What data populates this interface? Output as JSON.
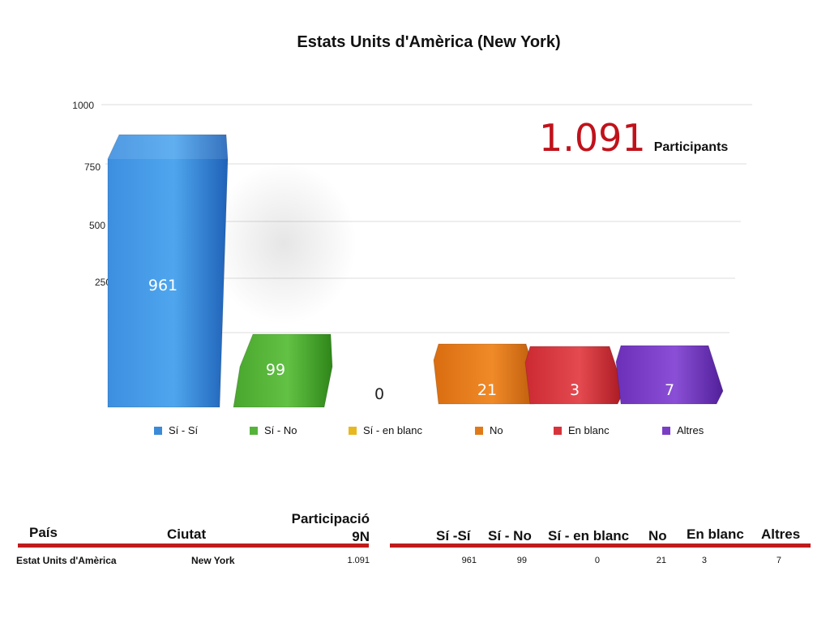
{
  "header": {
    "title": "Estats Units d'Amèrica (New York)",
    "participants_value": "1.091",
    "participants_label": "Participants"
  },
  "chart_data": {
    "type": "bar",
    "title": "Estats Units d'Amèrica (New York)",
    "categories": [
      "Sí - Sí",
      "Sí - No",
      "Sí - en blanc",
      "No",
      "En blanc",
      "Altres"
    ],
    "values": [
      961,
      99,
      0,
      21,
      3,
      7
    ],
    "colors": [
      "#3a8ad8",
      "#56b33a",
      "#e8b820",
      "#e07a18",
      "#d8323a",
      "#7a3ec4"
    ],
    "yticks": [
      1000,
      750,
      500,
      250
    ],
    "ylim": [
      0,
      1000
    ],
    "grid": true,
    "legend_position": "bottom"
  },
  "table": {
    "left_headers": {
      "country": "País",
      "city": "Ciutat",
      "participation_line1": "Participació",
      "participation_line2": "9N"
    },
    "right_headers": [
      "Sí -Sí",
      "Sí - No",
      "Sí - en blanc",
      "No",
      "En blanc",
      "Altres"
    ],
    "row": {
      "country": "Estat Units d'Amèrica",
      "city": "New York",
      "participation": "1.091",
      "values": [
        "961",
        "99",
        "0",
        "21",
        "3",
        "7"
      ]
    }
  }
}
